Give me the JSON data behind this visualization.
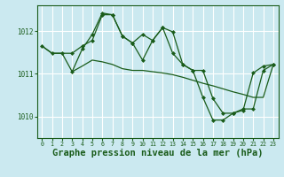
{
  "background_color": "#cbe9f0",
  "grid_color": "#ffffff",
  "line_color": "#1a5c1a",
  "marker_color": "#1a5c1a",
  "xlabel": "Graphe pression niveau de la mer (hPa)",
  "xlabel_fontsize": 7.5,
  "yticks": [
    1010,
    1011,
    1012
  ],
  "xlim": [
    -0.5,
    23.5
  ],
  "ylim": [
    1009.5,
    1012.6
  ],
  "line1_x": [
    0,
    1,
    2,
    3,
    4,
    5,
    6,
    7,
    8,
    9,
    10,
    11,
    12,
    13,
    14,
    15,
    16,
    17,
    18,
    19,
    20,
    21,
    22,
    23
  ],
  "line1_y": [
    1011.65,
    1011.48,
    1011.48,
    1011.48,
    1011.65,
    1011.78,
    1012.38,
    1012.38,
    1011.88,
    1011.72,
    1011.92,
    1011.78,
    1012.08,
    1011.98,
    1011.22,
    1011.08,
    1011.08,
    1010.42,
    1010.08,
    1010.08,
    1010.18,
    1010.18,
    1011.08,
    1011.22
  ],
  "line2_x": [
    0,
    1,
    2,
    3,
    4,
    5,
    6,
    7,
    8,
    9,
    10,
    11,
    12,
    13,
    14,
    15,
    16,
    17,
    18,
    19,
    20,
    21,
    22,
    23
  ],
  "line2_y": [
    1011.65,
    1011.48,
    1011.48,
    1011.05,
    1011.18,
    1011.32,
    1011.28,
    1011.22,
    1011.12,
    1011.08,
    1011.08,
    1011.05,
    1011.02,
    1010.98,
    1010.92,
    1010.85,
    1010.78,
    1010.72,
    1010.65,
    1010.58,
    1010.52,
    1010.45,
    1010.45,
    1011.22
  ],
  "line3_x": [
    3,
    4,
    5,
    6,
    7,
    8,
    9,
    10,
    11,
    12,
    13,
    14,
    15,
    16,
    17,
    18,
    19,
    20,
    21,
    22,
    23
  ],
  "line3_y": [
    1011.05,
    1011.58,
    1011.92,
    1012.42,
    1012.38,
    1011.88,
    1011.72,
    1011.32,
    1011.78,
    1012.08,
    1011.48,
    1011.22,
    1011.08,
    1010.45,
    1009.92,
    1009.92,
    1010.08,
    1010.15,
    1011.02,
    1011.18,
    1011.22
  ]
}
